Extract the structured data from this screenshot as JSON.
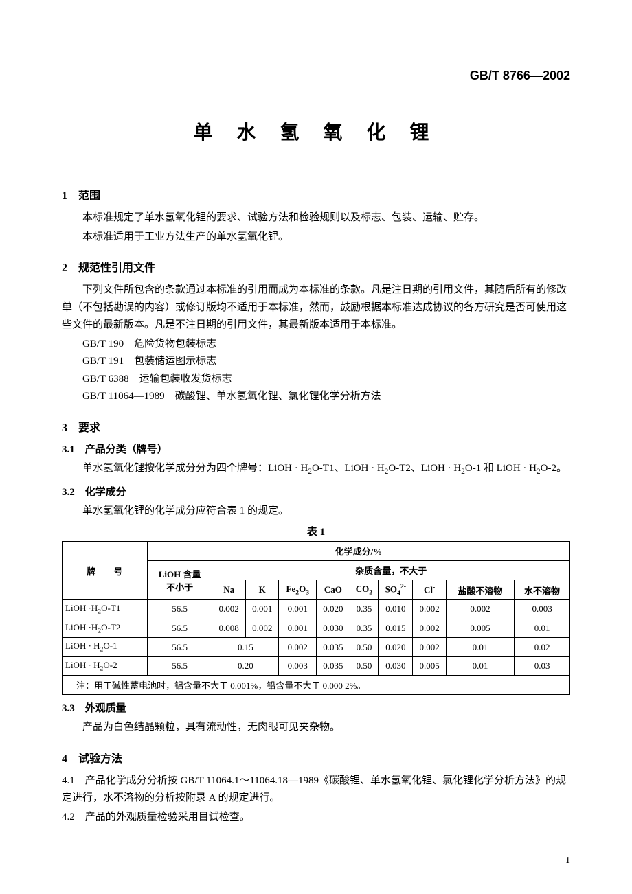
{
  "standard_code": "GB/T 8766—2002",
  "title": "单 水 氢 氧 化 锂",
  "s1": {
    "heading": "1　范围",
    "p1": "本标准规定了单水氢氧化锂的要求、试验方法和检验规则以及标志、包装、运输、贮存。",
    "p2": "本标准适用于工业方法生产的单水氢氧化锂。"
  },
  "s2": {
    "heading": "2　规范性引用文件",
    "p1": "下列文件所包含的条款通过本标准的引用而成为本标准的条款。凡是注日期的引用文件，其随后所有的修改单（不包括勘误的内容）或修订版均不适用于本标准，然而，鼓励根据本标准达成协议的各方研究是否可使用这些文件的最新版本。凡是不注日期的引用文件，其最新版本适用于本标准。",
    "r1": "GB/T 190　危险货物包装标志",
    "r2": "GB/T 191　包装储运图示标志",
    "r3": "GB/T 6388　运输包装收发货标志",
    "r4": "GB/T 11064—1989　碳酸锂、单水氢氧化锂、氯化锂化学分析方法"
  },
  "s3": {
    "heading": "3　要求",
    "s31": {
      "heading": "3.1　产品分类（牌号）",
      "p1_a": "单水氢氧化锂按化学成分分为四个牌号：LiOH · H",
      "p1_b": "O-T1、LiOH · H",
      "p1_c": "O-T2、LiOH · H",
      "p1_d": "O-1 和 LiOH · H",
      "p1_e": "O-2。"
    },
    "s32": {
      "heading": "3.2　化学成分",
      "p1": "单水氢氧化锂的化学成分应符合表 1 的规定。",
      "table_caption": "表 1",
      "table": {
        "head_grade": "牌　　号",
        "head_comp": "化学成分/%",
        "head_lioh_a": "LiOH 含量",
        "head_lioh_b": "不小于",
        "head_imp": "杂质含量，不大于",
        "cols": {
          "na": "Na",
          "k": "K",
          "fe2o3": "Fe₂O₃",
          "cao": "CaO",
          "co2": "CO₂",
          "so4": "SO₄²⁻",
          "cl": "Cl⁻",
          "hcl": "盐酸不溶物",
          "h2o": "水不溶物"
        },
        "rows": [
          {
            "label_a": "LiOH ·H",
            "label_b": "O-T1",
            "lioh": "56.5",
            "na": "0.002",
            "k": "0.001",
            "fe2o3": "0.001",
            "cao": "0.020",
            "co2": "0.35",
            "so4": "0.010",
            "cl": "0.002",
            "hcl": "0.002",
            "h2o": "0.003"
          },
          {
            "label_a": "LiOH ·H",
            "label_b": "O-T2",
            "lioh": "56.5",
            "na": "0.008",
            "k": "0.002",
            "fe2o3": "0.001",
            "cao": "0.030",
            "co2": "0.35",
            "so4": "0.015",
            "cl": "0.002",
            "hcl": "0.005",
            "h2o": "0.01"
          },
          {
            "label_a": "LiOH · H",
            "label_b": "O-1",
            "lioh": "56.5",
            "nak": "0.15",
            "fe2o3": "0.002",
            "cao": "0.035",
            "co2": "0.50",
            "so4": "0.020",
            "cl": "0.002",
            "hcl": "0.01",
            "h2o": "0.02"
          },
          {
            "label_a": "LiOH · H",
            "label_b": "O-2",
            "lioh": "56.5",
            "nak": "0.20",
            "fe2o3": "0.003",
            "cao": "0.035",
            "co2": "0.50",
            "so4": "0.030",
            "cl": "0.005",
            "hcl": "0.01",
            "h2o": "0.03"
          }
        ],
        "footnote": "注：用于碱性蓄电池时，铝含量不大于 0.001%，铅含量不大于 0.000 2%。"
      }
    },
    "s33": {
      "heading": "3.3　外观质量",
      "p1": "产品为白色结晶颗粒，具有流动性，无肉眼可见夹杂物。"
    }
  },
  "s4": {
    "heading": "4　试验方法",
    "p41": "4.1　产品化学成分分析按 GB/T 11064.1～11064.18—1989《碳酸锂、单水氢氧化锂、氯化锂化学分析方法》的规定进行，水不溶物的分析按附录 A 的规定进行。",
    "p42": "4.2　产品的外观质量检验采用目试检查。"
  },
  "page_number": "1"
}
